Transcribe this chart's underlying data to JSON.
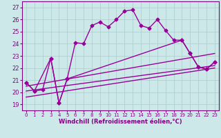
{
  "xlabel": "Windchill (Refroidissement éolien,°C)",
  "background_color": "#cde8e8",
  "grid_color": "#aacccc",
  "line_color": "#990099",
  "x_ticks": [
    0,
    1,
    2,
    3,
    4,
    5,
    6,
    7,
    8,
    9,
    10,
    11,
    12,
    13,
    14,
    15,
    16,
    17,
    18,
    19,
    20,
    21,
    22,
    23
  ],
  "y_ticks": [
    19,
    20,
    21,
    22,
    23,
    24,
    25,
    26,
    27
  ],
  "ylim": [
    18.5,
    27.5
  ],
  "xlim": [
    -0.5,
    23.5
  ],
  "series1_x": [
    0,
    1,
    2,
    3,
    4,
    5,
    6,
    7,
    8,
    9,
    10,
    11,
    12,
    13,
    14,
    15,
    16,
    17,
    18,
    19,
    20,
    21,
    22,
    23
  ],
  "series1_y": [
    20.8,
    20.1,
    20.2,
    22.8,
    19.1,
    21.1,
    24.1,
    24.0,
    25.5,
    25.8,
    25.4,
    26.0,
    26.7,
    26.8,
    25.5,
    25.3,
    26.0,
    25.1,
    24.3,
    24.3,
    23.2,
    22.1,
    21.9,
    22.5
  ],
  "series2_x": [
    0,
    1,
    3,
    4,
    5,
    19,
    20,
    21,
    22,
    23
  ],
  "series2_y": [
    20.8,
    20.1,
    22.8,
    19.1,
    21.1,
    24.3,
    23.2,
    22.1,
    21.9,
    22.5
  ],
  "trend1_x": [
    0,
    23
  ],
  "trend1_y": [
    20.5,
    23.2
  ],
  "trend2_x": [
    0,
    23
  ],
  "trend2_y": [
    20.1,
    22.2
  ],
  "trend3_x": [
    0,
    23
  ],
  "trend3_y": [
    19.6,
    22.0
  ],
  "font_color": "#800080",
  "marker": "D",
  "marker_size": 2.5,
  "line_width": 1.0
}
